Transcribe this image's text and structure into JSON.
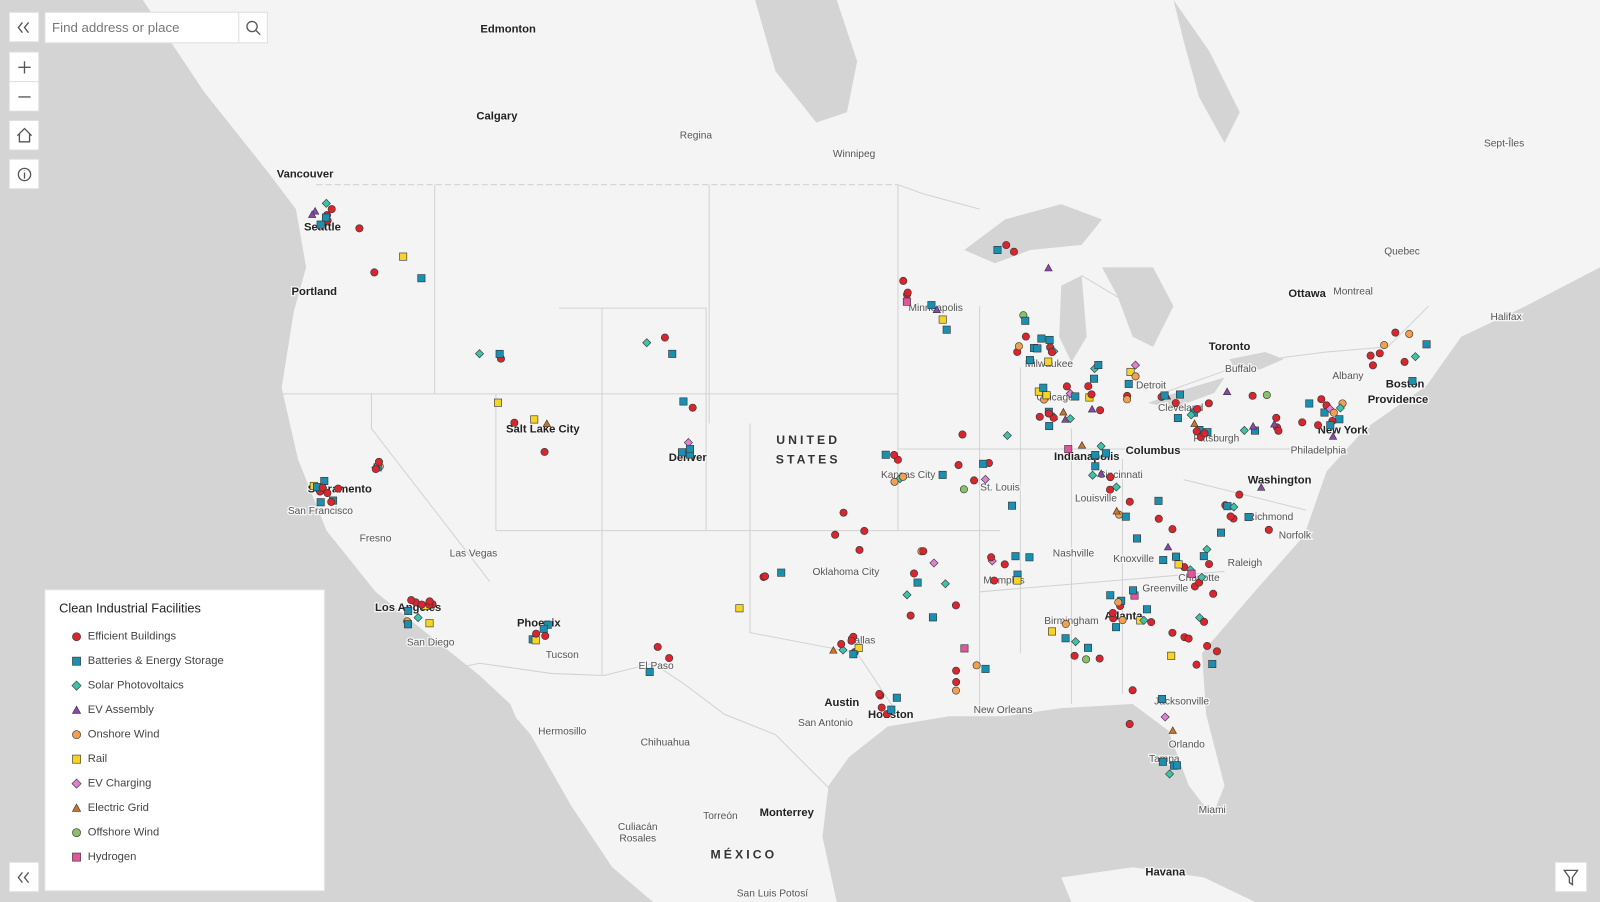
{
  "search": {
    "placeholder": "Find address or place"
  },
  "map": {
    "labels": [
      "Edmonton",
      "Calgary",
      "Regina",
      "Winnipeg",
      "Vancouver",
      "Seattle",
      "Portland",
      "Minneapolis",
      "Ottawa",
      "Montreal",
      "Quebec",
      "Sept-Îles",
      "Halifax",
      "Toronto",
      "Albany",
      "Boston",
      "Providence",
      "Milwaukee",
      "Detroit",
      "Buffalo",
      "Chicago",
      "Cleveland",
      "Pittsburgh",
      "New York",
      "Philadelphia",
      "Salt Lake City",
      "Denver",
      "UNITED",
      "STATES",
      "Kansas City",
      "Indianapolis",
      "Columbus",
      "Cincinnati",
      "Washington",
      "St. Louis",
      "Louisville",
      "Sacramento",
      "San Francisco",
      "Richmond",
      "Fresno",
      "Norfolk",
      "Las Vegas",
      "Nashville",
      "Knoxville",
      "Raleigh",
      "Oklahoma City",
      "Memphis",
      "Charlotte",
      "Greenville",
      "Los Angeles",
      "Atlanta",
      "Birmingham",
      "Phoenix",
      "San Diego",
      "Dallas",
      "Tucson",
      "El Paso",
      "Jacksonville",
      "Austin",
      "New Orleans",
      "Houston",
      "San Antonio",
      "Hermosillo",
      "Chihuahua",
      "Orlando",
      "Tampa",
      "Miami",
      "Monterrey",
      "Torreón",
      "Culiacán",
      "Rosales",
      "MÉXICO",
      "Havana",
      "San Luis Potosí"
    ]
  },
  "legend": {
    "title": "Clean Industrial Facilities",
    "items": [
      {
        "label": "Efficient Buildings",
        "color": "#d7262e",
        "shape": "circle"
      },
      {
        "label": "Batteries & Energy Storage",
        "color": "#1a8fb0",
        "shape": "square"
      },
      {
        "label": "Solar Photovoltaics",
        "color": "#3cc3a8",
        "shape": "diamond"
      },
      {
        "label": "EV Assembly",
        "color": "#8e44ad",
        "shape": "triangle"
      },
      {
        "label": "Onshore Wind",
        "color": "#f0a050",
        "shape": "circle"
      },
      {
        "label": "Rail",
        "color": "#f5d327",
        "shape": "square"
      },
      {
        "label": "EV Charging",
        "color": "#e07fd6",
        "shape": "diamond"
      },
      {
        "label": "Electric Grid",
        "color": "#c8742a",
        "shape": "triangle"
      },
      {
        "label": "Offshore Wind",
        "color": "#8bc06b",
        "shape": "circle"
      },
      {
        "label": "Hydrogen",
        "color": "#e0559c",
        "shape": "square"
      }
    ]
  }
}
